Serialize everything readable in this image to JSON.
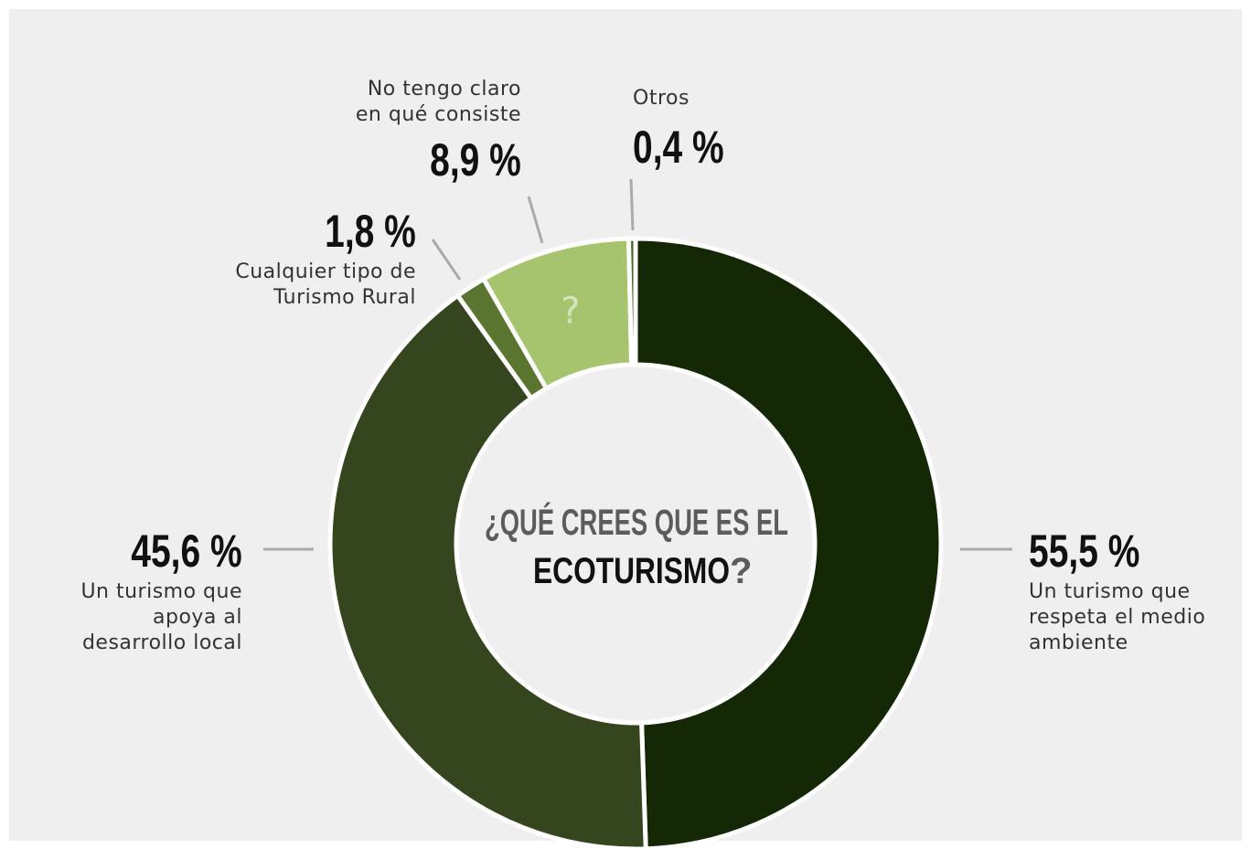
{
  "chart_data": {
    "type": "donut",
    "title": [
      "¿QUÉ CREES QUE ES EL",
      "ECOTURISMO",
      "?"
    ],
    "categories": [
      "Un turismo que respeta el medio ambiente",
      "Un turismo que apoya al desarrollo local",
      "Cualquier tipo de Turismo Rural",
      "No tengo claro en qué consiste",
      "Otros"
    ],
    "values": [
      55.5,
      45.6,
      1.8,
      8.9,
      0.4
    ],
    "value_labels": [
      "55,5 %",
      "45,6 %",
      "1,8 %",
      "8,9 %",
      "0,4 %"
    ],
    "colors": [
      "#142806",
      "#35461e",
      "#5a7530",
      "#a6c46e",
      "#3c6a1a"
    ],
    "annotations": [
      "?"
    ]
  }
}
